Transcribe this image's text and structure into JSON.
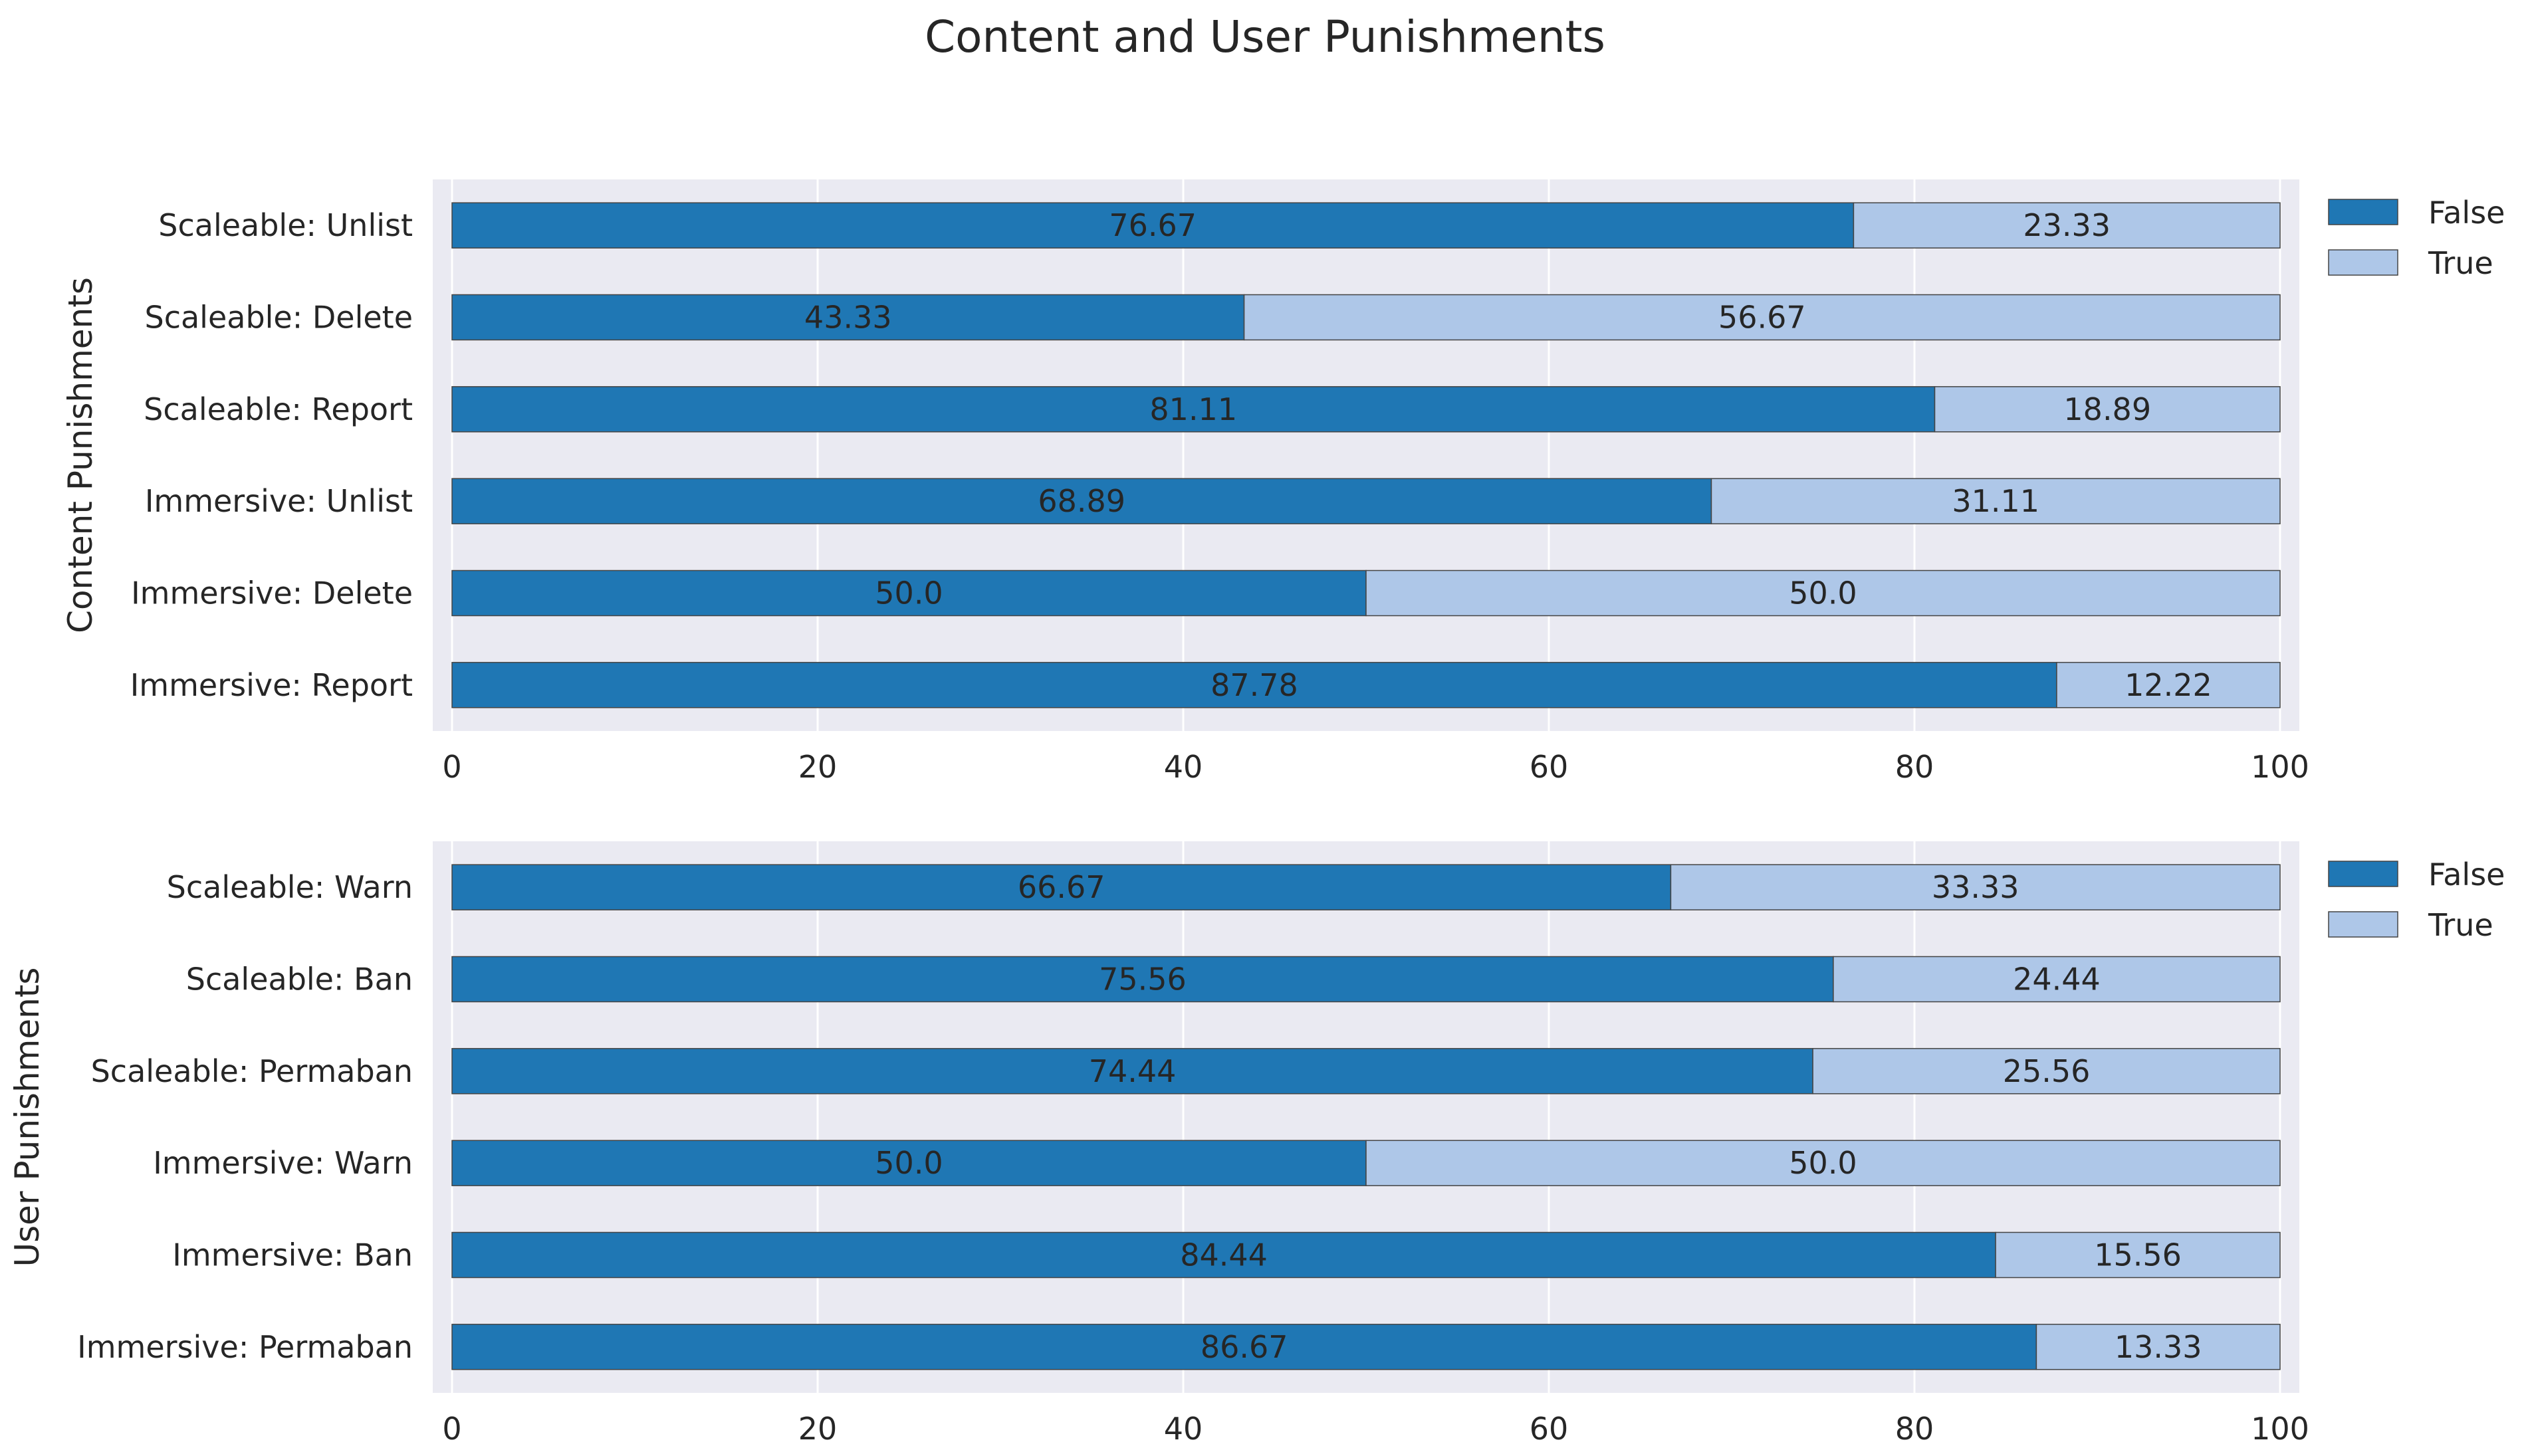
{
  "title": "Content and User Punishments",
  "colors": {
    "false": "#1f77b4",
    "true": "#aec7e8",
    "panel_bg": "#eaeaf2",
    "grid": "#ffffff",
    "edge": "#444444"
  },
  "chart_data": [
    {
      "type": "bar",
      "orientation": "horizontal",
      "stacked": true,
      "ylabel": "Content Punishments",
      "xlim": [
        0,
        100
      ],
      "xticks": [
        "0",
        "20",
        "40",
        "60",
        "80",
        "100"
      ],
      "categories": [
        "Scaleable: Unlist",
        "Scaleable: Delete",
        "Scaleable: Report",
        "Immersive: Unlist",
        "Immersive: Delete",
        "Immersive: Report"
      ],
      "series": [
        {
          "name": "False",
          "values": [
            76.67,
            43.33,
            81.11,
            68.89,
            50.0,
            87.78
          ],
          "labels": [
            "76.67",
            "43.33",
            "81.11",
            "68.89",
            "50.0",
            "87.78"
          ]
        },
        {
          "name": "True",
          "values": [
            23.33,
            56.67,
            18.89,
            31.11,
            50.0,
            12.22
          ],
          "labels": [
            "23.33",
            "56.67",
            "18.89",
            "31.11",
            "50.0",
            "12.22"
          ]
        }
      ],
      "legend": {
        "placement": "outside-top-right",
        "entries": [
          "False",
          "True"
        ]
      },
      "grid": true
    },
    {
      "type": "bar",
      "orientation": "horizontal",
      "stacked": true,
      "ylabel": "User Punishments",
      "xlim": [
        0,
        100
      ],
      "xticks": [
        "0",
        "20",
        "40",
        "60",
        "80",
        "100"
      ],
      "categories": [
        "Scaleable: Warn",
        "Scaleable: Ban",
        "Scaleable: Permaban",
        "Immersive: Warn",
        "Immersive: Ban",
        "Immersive: Permaban"
      ],
      "series": [
        {
          "name": "False",
          "values": [
            66.67,
            75.56,
            74.44,
            50.0,
            84.44,
            86.67
          ],
          "labels": [
            "66.67",
            "75.56",
            "74.44",
            "50.0",
            "84.44",
            "86.67"
          ]
        },
        {
          "name": "True",
          "values": [
            33.33,
            24.44,
            25.56,
            50.0,
            15.56,
            13.33
          ],
          "labels": [
            "33.33",
            "24.44",
            "25.56",
            "50.0",
            "15.56",
            "13.33"
          ]
        }
      ],
      "legend": {
        "placement": "outside-top-right",
        "entries": [
          "False",
          "True"
        ]
      },
      "grid": true
    }
  ]
}
